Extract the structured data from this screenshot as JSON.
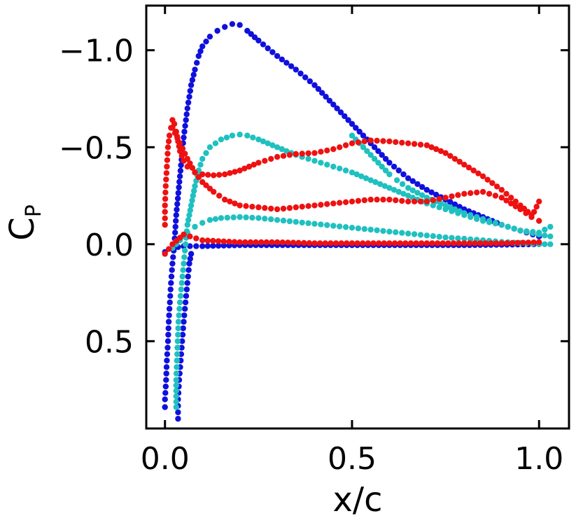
{
  "chart_data": {
    "type": "scatter",
    "title": "",
    "xlabel": "x/c",
    "ylabel_main": "C",
    "ylabel_sub": "P",
    "xlim": [
      -0.05,
      1.08
    ],
    "ylim": [
      0.95,
      -1.23
    ],
    "y_inverted": true,
    "x_ticks": [
      {
        "value": 0.0,
        "label": "0.0"
      },
      {
        "value": 0.5,
        "label": "0.5"
      },
      {
        "value": 1.0,
        "label": "1.0"
      }
    ],
    "y_ticks": [
      {
        "value": -1.0,
        "label": "−1.0"
      },
      {
        "value": -0.5,
        "label": "−0.5"
      },
      {
        "value": 0.0,
        "label": "0.0"
      },
      {
        "value": 0.5,
        "label": "0.5"
      }
    ],
    "grid": false,
    "series": [
      {
        "name": "blue",
        "color": "#1010dd",
        "curves": [
          [
            [
              0.0,
              0.84
            ],
            [
              0.0,
              0.8
            ],
            [
              0.003,
              0.7
            ],
            [
              0.005,
              0.6
            ],
            [
              0.008,
              0.5
            ],
            [
              0.01,
              0.4
            ],
            [
              0.013,
              0.3
            ],
            [
              0.016,
              0.2
            ],
            [
              0.02,
              0.1
            ],
            [
              0.025,
              0.0
            ],
            [
              0.03,
              -0.15
            ],
            [
              0.04,
              -0.35
            ],
            [
              0.05,
              -0.55
            ],
            [
              0.06,
              -0.7
            ],
            [
              0.07,
              -0.82
            ],
            [
              0.08,
              -0.9
            ],
            [
              0.09,
              -0.97
            ],
            [
              0.1,
              -1.02
            ],
            [
              0.12,
              -1.07
            ],
            [
              0.14,
              -1.1
            ],
            [
              0.16,
              -1.12
            ],
            [
              0.18,
              -1.135
            ],
            [
              0.2,
              -1.13
            ],
            [
              0.22,
              -1.1
            ],
            [
              0.25,
              -1.05
            ],
            [
              0.3,
              -0.97
            ],
            [
              0.35,
              -0.9
            ],
            [
              0.4,
              -0.82
            ],
            [
              0.45,
              -0.72
            ],
            [
              0.5,
              -0.62
            ],
            [
              0.55,
              -0.52
            ],
            [
              0.6,
              -0.42
            ],
            [
              0.65,
              -0.34
            ],
            [
              0.7,
              -0.28
            ],
            [
              0.75,
              -0.23
            ],
            [
              0.8,
              -0.18
            ],
            [
              0.85,
              -0.14
            ],
            [
              0.9,
              -0.1
            ],
            [
              0.95,
              -0.07
            ],
            [
              1.0,
              -0.04
            ]
          ],
          [
            [
              0.0,
              0.04
            ],
            [
              0.02,
              0.02
            ],
            [
              0.05,
              0.01
            ],
            [
              0.1,
              0.01
            ],
            [
              0.2,
              0.005
            ],
            [
              0.3,
              0.005
            ],
            [
              0.4,
              0.005
            ],
            [
              0.5,
              0.005
            ],
            [
              0.6,
              0.005
            ],
            [
              0.7,
              0.005
            ],
            [
              0.8,
              0.005
            ],
            [
              0.9,
              0.003
            ],
            [
              1.0,
              0.0
            ]
          ],
          [
            [
              0.035,
              0.9
            ],
            [
              0.035,
              0.8
            ],
            [
              0.038,
              0.7
            ],
            [
              0.042,
              0.6
            ],
            [
              0.046,
              0.5
            ],
            [
              0.05,
              0.4
            ],
            [
              0.055,
              0.3
            ],
            [
              0.06,
              0.2
            ],
            [
              0.065,
              0.1
            ],
            [
              0.07,
              0.05
            ]
          ]
        ]
      },
      {
        "name": "cyan",
        "color": "#20c0c0",
        "curves": [
          [
            [
              0.03,
              0.84
            ],
            [
              0.03,
              0.7
            ],
            [
              0.032,
              0.6
            ],
            [
              0.034,
              0.5
            ],
            [
              0.036,
              0.4
            ],
            [
              0.04,
              0.3
            ],
            [
              0.045,
              0.2
            ],
            [
              0.05,
              0.1
            ],
            [
              0.055,
              0.0
            ],
            [
              0.06,
              -0.1
            ],
            [
              0.07,
              -0.2
            ],
            [
              0.08,
              -0.3
            ],
            [
              0.09,
              -0.38
            ],
            [
              0.1,
              -0.44
            ],
            [
              0.12,
              -0.5
            ],
            [
              0.15,
              -0.54
            ],
            [
              0.18,
              -0.56
            ],
            [
              0.2,
              -0.565
            ],
            [
              0.22,
              -0.56
            ],
            [
              0.25,
              -0.54
            ],
            [
              0.3,
              -0.5
            ],
            [
              0.35,
              -0.46
            ],
            [
              0.4,
              -0.43
            ],
            [
              0.45,
              -0.4
            ],
            [
              0.5,
              -0.37
            ],
            [
              0.55,
              -0.33
            ],
            [
              0.6,
              -0.29
            ],
            [
              0.65,
              -0.25
            ],
            [
              0.7,
              -0.21
            ],
            [
              0.75,
              -0.18
            ],
            [
              0.8,
              -0.15
            ],
            [
              0.85,
              -0.12
            ],
            [
              0.9,
              -0.1
            ],
            [
              0.95,
              -0.07
            ],
            [
              1.0,
              -0.05
            ],
            [
              1.03,
              -0.04
            ]
          ],
          [
            [
              0.02,
              0.02
            ],
            [
              0.04,
              -0.02
            ],
            [
              0.06,
              -0.06
            ],
            [
              0.08,
              -0.09
            ],
            [
              0.1,
              -0.11
            ],
            [
              0.12,
              -0.125
            ],
            [
              0.15,
              -0.135
            ],
            [
              0.2,
              -0.14
            ],
            [
              0.25,
              -0.135
            ],
            [
              0.3,
              -0.125
            ],
            [
              0.35,
              -0.115
            ],
            [
              0.4,
              -0.105
            ],
            [
              0.45,
              -0.095
            ],
            [
              0.5,
              -0.085
            ],
            [
              0.55,
              -0.075
            ],
            [
              0.6,
              -0.065
            ],
            [
              0.65,
              -0.055
            ],
            [
              0.7,
              -0.045
            ],
            [
              0.75,
              -0.035
            ],
            [
              0.8,
              -0.028
            ],
            [
              0.85,
              -0.02
            ],
            [
              0.9,
              -0.012
            ],
            [
              0.95,
              -0.006
            ],
            [
              1.0,
              0.0
            ],
            [
              1.03,
              0.0
            ]
          ],
          [
            [
              0.5,
              -0.56
            ],
            [
              0.51,
              -0.54
            ],
            [
              0.52,
              -0.52
            ],
            [
              0.54,
              -0.48
            ],
            [
              0.56,
              -0.44
            ],
            [
              0.58,
              -0.4
            ],
            [
              0.6,
              -0.36
            ],
            [
              0.62,
              -0.33
            ],
            [
              0.65,
              -0.29
            ],
            [
              0.7,
              -0.24
            ],
            [
              0.75,
              -0.2
            ],
            [
              0.8,
              -0.16
            ],
            [
              0.85,
              -0.13
            ],
            [
              0.9,
              -0.1
            ],
            [
              0.95,
              -0.07
            ],
            [
              1.0,
              -0.06
            ],
            [
              1.03,
              -0.09
            ]
          ]
        ]
      },
      {
        "name": "red",
        "color": "#ee1111",
        "curves": [
          [
            [
              0.0,
              -0.1
            ],
            [
              0.0,
              -0.2
            ],
            [
              0.002,
              -0.3
            ],
            [
              0.005,
              -0.4
            ],
            [
              0.008,
              -0.5
            ],
            [
              0.012,
              -0.56
            ],
            [
              0.016,
              -0.6
            ],
            [
              0.02,
              -0.64
            ],
            [
              0.025,
              -0.62
            ],
            [
              0.03,
              -0.58
            ],
            [
              0.035,
              -0.53
            ],
            [
              0.04,
              -0.48
            ],
            [
              0.05,
              -0.43
            ],
            [
              0.06,
              -0.4
            ],
            [
              0.08,
              -0.37
            ],
            [
              0.1,
              -0.36
            ],
            [
              0.13,
              -0.355
            ],
            [
              0.16,
              -0.36
            ],
            [
              0.2,
              -0.38
            ],
            [
              0.25,
              -0.42
            ],
            [
              0.3,
              -0.45
            ],
            [
              0.35,
              -0.465
            ],
            [
              0.4,
              -0.47
            ],
            [
              0.45,
              -0.49
            ],
            [
              0.5,
              -0.52
            ],
            [
              0.55,
              -0.535
            ],
            [
              0.6,
              -0.53
            ],
            [
              0.65,
              -0.52
            ],
            [
              0.7,
              -0.51
            ],
            [
              0.75,
              -0.47
            ],
            [
              0.8,
              -0.41
            ],
            [
              0.85,
              -0.35
            ],
            [
              0.9,
              -0.28
            ],
            [
              0.95,
              -0.2
            ],
            [
              0.98,
              -0.15
            ],
            [
              1.0,
              -0.12
            ]
          ],
          [
            [
              0.0,
              0.05
            ],
            [
              0.02,
              0.0
            ],
            [
              0.05,
              -0.05
            ],
            [
              0.1,
              -0.02
            ],
            [
              0.2,
              -0.01
            ],
            [
              0.3,
              -0.01
            ],
            [
              0.4,
              -0.005
            ],
            [
              0.5,
              -0.005
            ],
            [
              0.6,
              -0.005
            ],
            [
              0.7,
              -0.005
            ],
            [
              0.8,
              -0.005
            ],
            [
              0.9,
              -0.005
            ],
            [
              1.0,
              -0.01
            ]
          ],
          [
            [
              0.02,
              -0.6
            ],
            [
              0.04,
              -0.52
            ],
            [
              0.06,
              -0.44
            ],
            [
              0.08,
              -0.37
            ],
            [
              0.1,
              -0.32
            ],
            [
              0.13,
              -0.27
            ],
            [
              0.16,
              -0.23
            ],
            [
              0.2,
              -0.2
            ],
            [
              0.25,
              -0.19
            ],
            [
              0.3,
              -0.18
            ],
            [
              0.35,
              -0.19
            ],
            [
              0.4,
              -0.2
            ],
            [
              0.45,
              -0.21
            ],
            [
              0.5,
              -0.22
            ],
            [
              0.55,
              -0.23
            ],
            [
              0.6,
              -0.23
            ],
            [
              0.65,
              -0.22
            ],
            [
              0.7,
              -0.22
            ],
            [
              0.75,
              -0.24
            ],
            [
              0.8,
              -0.26
            ],
            [
              0.85,
              -0.27
            ],
            [
              0.9,
              -0.24
            ],
            [
              0.95,
              -0.18
            ],
            [
              0.98,
              -0.14
            ],
            [
              1.0,
              -0.22
            ]
          ]
        ]
      }
    ]
  }
}
